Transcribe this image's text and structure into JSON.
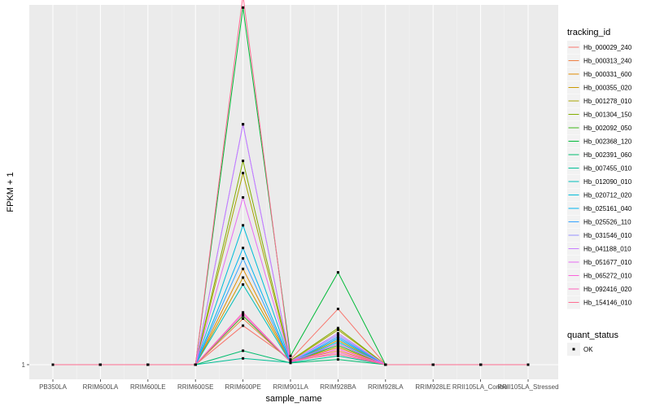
{
  "chart_data": {
    "type": "line",
    "xlabel": "sample_name",
    "ylabel": "FPKM + 1",
    "categories": [
      "PB350LA",
      "RRIM600LA",
      "RRIM600LE",
      "RRIM600SE",
      "RRIM600PE",
      "RRIM901LA",
      "RRIM928BA",
      "RRIM928LA",
      "RRIM928LE",
      "RRII105LA_Control",
      "RRII105LA_Stressed"
    ],
    "y_tick_labels": [
      "1"
    ],
    "ylim": [
      0,
      1000
    ],
    "grid": true,
    "legend_placement": "right",
    "legend_title": "tracking_id",
    "legend2": {
      "title": "quant_status",
      "items": [
        "OK"
      ]
    },
    "series": [
      {
        "name": "Hb_000029_240",
        "color": "#F8766D",
        "values": [
          0,
          0,
          0,
          0,
          112,
          15,
          160,
          0,
          0,
          0,
          0
        ]
      },
      {
        "name": "Hb_000313_240",
        "color": "#EE8043",
        "values": [
          0,
          0,
          0,
          0,
          132,
          10,
          40,
          0,
          0,
          0,
          0
        ]
      },
      {
        "name": "Hb_000331_600",
        "color": "#E08B00",
        "values": [
          0,
          0,
          0,
          0,
          275,
          8,
          50,
          0,
          0,
          0,
          0
        ]
      },
      {
        "name": "Hb_000355_020",
        "color": "#C99800",
        "values": [
          0,
          0,
          0,
          0,
          250,
          8,
          70,
          0,
          0,
          0,
          0
        ]
      },
      {
        "name": "Hb_001278_010",
        "color": "#A8A400",
        "values": [
          0,
          0,
          0,
          0,
          550,
          10,
          100,
          0,
          0,
          0,
          0
        ]
      },
      {
        "name": "Hb_001304_150",
        "color": "#83AD00",
        "values": [
          0,
          0,
          0,
          0,
          585,
          12,
          105,
          0,
          0,
          0,
          0
        ]
      },
      {
        "name": "Hb_002092_050",
        "color": "#3FB618",
        "values": [
          0,
          0,
          0,
          0,
          140,
          8,
          55,
          0,
          0,
          0,
          0
        ]
      },
      {
        "name": "Hb_002368_120",
        "color": "#00BA38",
        "values": [
          0,
          0,
          0,
          0,
          1025,
          25,
          265,
          0,
          0,
          0,
          0
        ]
      },
      {
        "name": "Hb_002391_060",
        "color": "#00BC6F",
        "values": [
          0,
          0,
          0,
          0,
          40,
          5,
          15,
          0,
          0,
          0,
          0
        ]
      },
      {
        "name": "Hb_007455_010",
        "color": "#00BF96",
        "values": [
          0,
          0,
          0,
          0,
          18,
          6,
          25,
          0,
          0,
          0,
          0
        ]
      },
      {
        "name": "Hb_012090_010",
        "color": "#00BFBA",
        "values": [
          0,
          0,
          0,
          0,
          230,
          6,
          60,
          0,
          0,
          0,
          0
        ]
      },
      {
        "name": "Hb_020712_020",
        "color": "#00BCD8",
        "values": [
          0,
          0,
          0,
          0,
          400,
          8,
          65,
          0,
          0,
          0,
          0
        ]
      },
      {
        "name": "Hb_025161_040",
        "color": "#00B4EF",
        "values": [
          0,
          0,
          0,
          0,
          335,
          7,
          75,
          0,
          0,
          0,
          0
        ]
      },
      {
        "name": "Hb_025526_110",
        "color": "#35A2FF",
        "values": [
          0,
          0,
          0,
          0,
          305,
          7,
          80,
          0,
          0,
          0,
          0
        ]
      },
      {
        "name": "Hb_031546_010",
        "color": "#9590FF",
        "values": [
          0,
          0,
          0,
          0,
          690,
          10,
          85,
          0,
          0,
          0,
          0
        ]
      },
      {
        "name": "Hb_041188_010",
        "color": "#C77CFF",
        "values": [
          0,
          0,
          0,
          0,
          690,
          9,
          90,
          0,
          0,
          0,
          0
        ]
      },
      {
        "name": "Hb_051677_010",
        "color": "#E76BF3",
        "values": [
          0,
          0,
          0,
          0,
          480,
          9,
          60,
          0,
          0,
          0,
          0
        ]
      },
      {
        "name": "Hb_065272_010",
        "color": "#FA62DB",
        "values": [
          0,
          0,
          0,
          0,
          145,
          8,
          45,
          0,
          0,
          0,
          0
        ]
      },
      {
        "name": "Hb_092416_020",
        "color": "#FF62BC",
        "values": [
          0,
          0,
          0,
          0,
          150,
          8,
          35,
          0,
          0,
          0,
          0
        ]
      },
      {
        "name": "Hb_154146_010",
        "color": "#FF6C91",
        "values": [
          0,
          0,
          0,
          0,
          1060,
          12,
          30,
          0,
          0,
          0,
          0
        ]
      }
    ]
  }
}
